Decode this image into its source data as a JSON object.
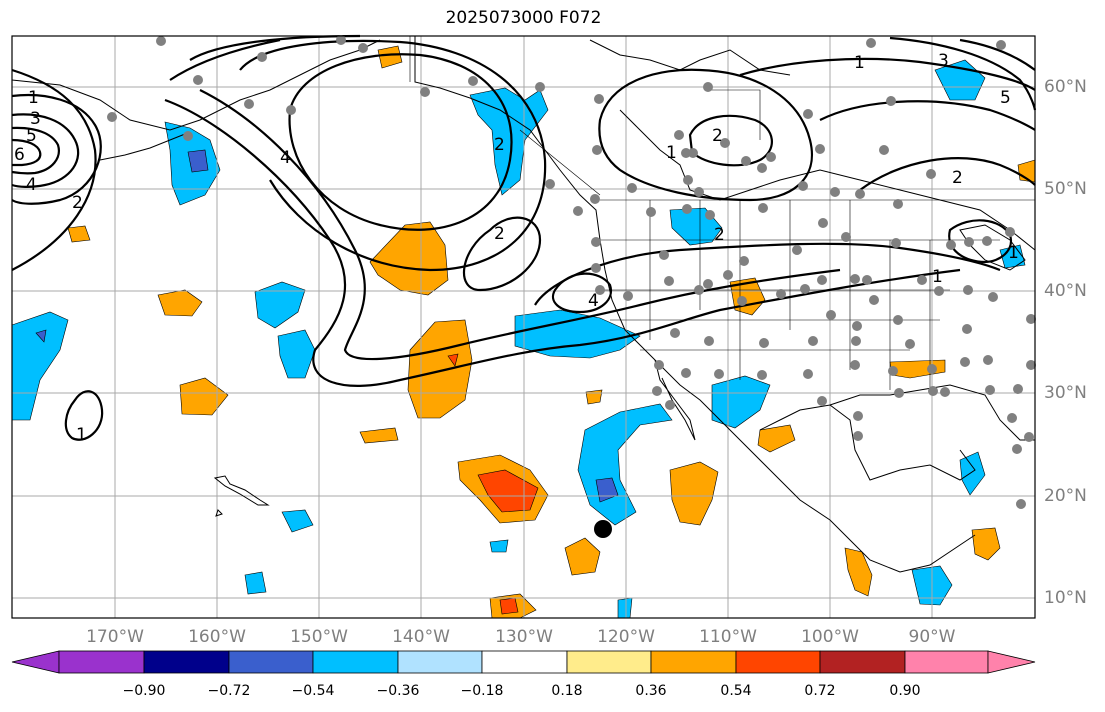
{
  "title": "2025073000 F072",
  "map": {
    "lon_labels": [
      "170°W",
      "160°W",
      "150°W",
      "140°W",
      "130°W",
      "120°W",
      "110°W",
      "100°W",
      "90°W"
    ],
    "lat_labels": [
      "60°N",
      "50°N",
      "40°N",
      "30°N",
      "20°N",
      "10°N"
    ],
    "contour_labels": [
      "1",
      "3",
      "5",
      "6",
      "4",
      "2",
      "1",
      "2",
      "2",
      "4",
      "1",
      "2",
      "1",
      "3",
      "2",
      "4",
      "1",
      "5",
      "1",
      "2"
    ],
    "marker": "black-dot"
  },
  "colorbar": {
    "ticks": [
      "−0.90",
      "−0.72",
      "−0.54",
      "−0.36",
      "−0.18",
      "0.18",
      "0.36",
      "0.54",
      "0.72",
      "0.90"
    ],
    "colors": [
      "#9a32cd",
      "#00008b",
      "#3a5fcd",
      "#00bfff",
      "#b0e2ff",
      "#ffffff",
      "#ffec8b",
      "#ffa500",
      "#ff4500",
      "#b22222",
      "#ff82ab"
    ]
  }
}
